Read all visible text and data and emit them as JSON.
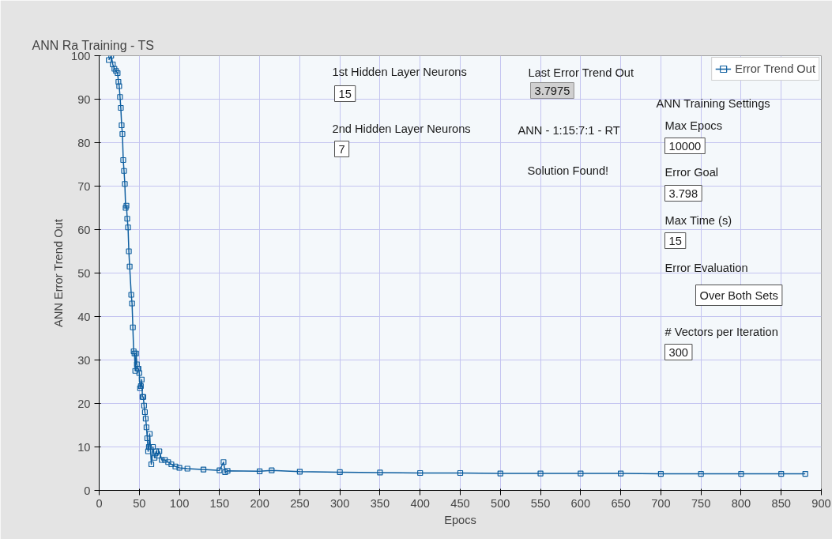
{
  "chart_data": {
    "type": "line",
    "title": "ANN Ra Training  - TS",
    "xlabel": "Epocs",
    "ylabel": "ANN Error Trend Out",
    "x": [
      12,
      15,
      17,
      19,
      21,
      23,
      24,
      25,
      26,
      27,
      28,
      29,
      30,
      31,
      32,
      33,
      34,
      35,
      36,
      37,
      38,
      40,
      41,
      42,
      43,
      44,
      45,
      46,
      47,
      48,
      49,
      50,
      51,
      52,
      53,
      54,
      55,
      56,
      57,
      58,
      59,
      60,
      61,
      62,
      63,
      65,
      67,
      69,
      71,
      73,
      75,
      78,
      82,
      86,
      90,
      95,
      100,
      110,
      130,
      150,
      155,
      157,
      160,
      200,
      215,
      250,
      300,
      350,
      400,
      450,
      500,
      550,
      600,
      650,
      700,
      750,
      800,
      850,
      880
    ],
    "series": [
      {
        "name": "Error Trend Out",
        "color": "#0f5fa0",
        "values": [
          99,
          100,
          98,
          97,
          96.5,
          96,
          94,
          93,
          90.5,
          88,
          84,
          82,
          76,
          73.5,
          70.5,
          65,
          65.5,
          62.5,
          60.5,
          55,
          51.5,
          45,
          43,
          37.5,
          32,
          31.5,
          27.5,
          31.5,
          29,
          28,
          28,
          27,
          23.5,
          24,
          25.5,
          21.5,
          21.5,
          19.5,
          18,
          16.5,
          14.5,
          12,
          9,
          10,
          13,
          6,
          10,
          7.5,
          9,
          8,
          9,
          7,
          7,
          6.5,
          6,
          5.5,
          5.2,
          5,
          4.8,
          4.6,
          6.5,
          4.2,
          4.5,
          4.4,
          4.6,
          4.3,
          4.2,
          4.1,
          4.0,
          4.0,
          3.9,
          3.9,
          3.9,
          3.9,
          3.8,
          3.8,
          3.8,
          3.8,
          3.8
        ]
      }
    ],
    "xlim": [
      0,
      900
    ],
    "ylim": [
      0,
      100
    ],
    "xticks": [
      0,
      50,
      100,
      150,
      200,
      250,
      300,
      350,
      400,
      450,
      500,
      550,
      600,
      650,
      700,
      750,
      800,
      850,
      900
    ],
    "yticks": [
      0,
      10,
      20,
      30,
      40,
      50,
      60,
      70,
      80,
      90,
      100
    ],
    "grid": true,
    "legend": "top right",
    "marker": "square",
    "line_style": "solid",
    "annotations": [
      "1st Hidden Layer Neurons",
      "15",
      "2nd Hidden Layer Neurons",
      "7",
      "Last Error Trend Out",
      "3.7975",
      "ANN - 1:15:7:1 - RT",
      "Solution Found!",
      "ANN Training Settings",
      "Max Epocs",
      "10000",
      "Error Goal",
      "3.798",
      "Max Time (s)",
      "15",
      "Error Evaluation",
      "Over Both Sets",
      "# Vectors per Iteration",
      "300"
    ]
  }
}
